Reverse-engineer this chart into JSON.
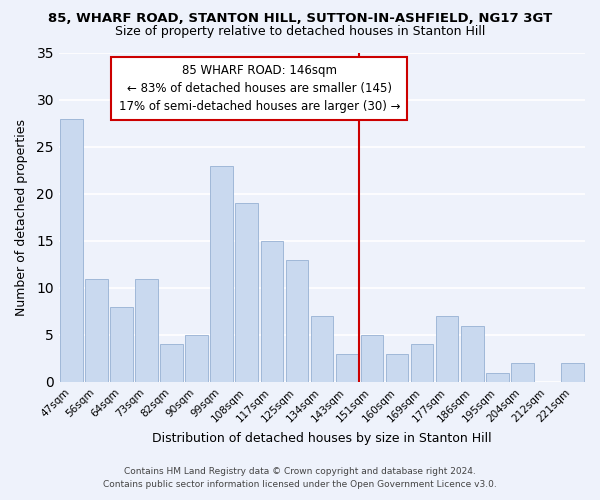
{
  "title_line1": "85, WHARF ROAD, STANTON HILL, SUTTON-IN-ASHFIELD, NG17 3GT",
  "title_line2": "Size of property relative to detached houses in Stanton Hill",
  "xlabel": "Distribution of detached houses by size in Stanton Hill",
  "ylabel": "Number of detached properties",
  "bar_labels": [
    "47sqm",
    "56sqm",
    "64sqm",
    "73sqm",
    "82sqm",
    "90sqm",
    "99sqm",
    "108sqm",
    "117sqm",
    "125sqm",
    "134sqm",
    "143sqm",
    "151sqm",
    "160sqm",
    "169sqm",
    "177sqm",
    "186sqm",
    "195sqm",
    "204sqm",
    "212sqm",
    "221sqm"
  ],
  "bar_heights": [
    28,
    11,
    8,
    11,
    4,
    5,
    23,
    19,
    15,
    13,
    7,
    3,
    5,
    3,
    4,
    7,
    6,
    1,
    2,
    0,
    2
  ],
  "bar_color": "#c9d9ef",
  "bar_edge_color": "#a0b8d8",
  "vline_color": "#cc0000",
  "annotation_title": "85 WHARF ROAD: 146sqm",
  "annotation_line1": "← 83% of detached houses are smaller (145)",
  "annotation_line2": "17% of semi-detached houses are larger (30) →",
  "annotation_box_color": "#ffffff",
  "annotation_box_edge": "#cc0000",
  "ylim": [
    0,
    35
  ],
  "yticks": [
    0,
    5,
    10,
    15,
    20,
    25,
    30,
    35
  ],
  "footer_line1": "Contains HM Land Registry data © Crown copyright and database right 2024.",
  "footer_line2": "Contains public sector information licensed under the Open Government Licence v3.0.",
  "background_color": "#eef2fb",
  "grid_color": "#ffffff",
  "title1_fontsize": 9.5,
  "title2_fontsize": 9.0,
  "xlabel_fontsize": 9.0,
  "ylabel_fontsize": 9.0,
  "tick_fontsize": 7.5,
  "annot_fontsize": 8.5,
  "footer_fontsize": 6.5
}
